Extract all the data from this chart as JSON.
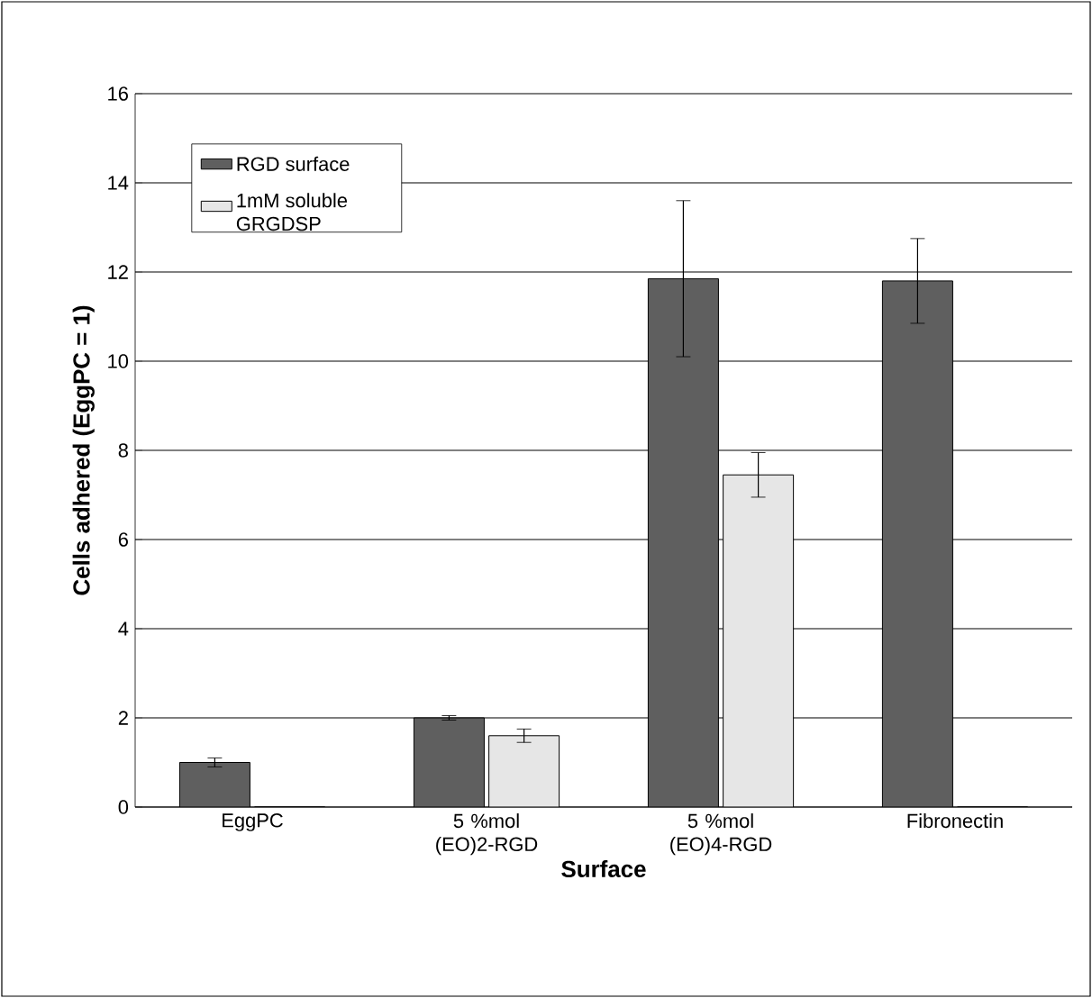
{
  "chart_data": {
    "type": "bar",
    "xlabel": "Surface",
    "ylabel": "Cells adhered (EggPC = 1)",
    "categories": [
      "EggPC",
      "5 %mol (EO)2-RGD",
      "5 %mol (EO)4-RGD",
      "Fibronectin"
    ],
    "series": [
      {
        "name": "RGD surface",
        "color": "#5f5f5f",
        "values": [
          1.0,
          2.0,
          11.85,
          11.8
        ],
        "errors": [
          0.1,
          0.05,
          1.75,
          0.95
        ]
      },
      {
        "name": "1mM soluble GRGDSP",
        "color": "#e6e6e6",
        "values": [
          0,
          1.6,
          7.45,
          0
        ],
        "errors": [
          null,
          0.15,
          0.5,
          null
        ]
      }
    ],
    "ylim": [
      0,
      16
    ],
    "yticks": [
      0,
      2,
      4,
      6,
      8,
      10,
      12,
      14,
      16
    ],
    "grid": "y",
    "legend": "top left"
  }
}
